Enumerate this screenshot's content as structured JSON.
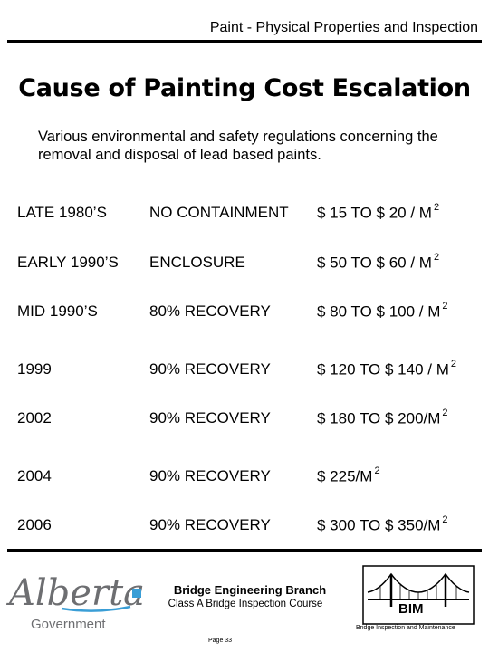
{
  "header": {
    "section_title": "Paint - Physical Properties and Inspection"
  },
  "slide": {
    "title": "Cause of Painting Cost Escalation",
    "intro": "Various environmental and safety regulations concerning the removal and disposal of lead based paints.",
    "rows": [
      {
        "period": "LATE 1980’S",
        "method": "NO CONTAINMENT",
        "cost": " $  15 TO $  20 / M",
        "unit_exp": "2"
      },
      {
        "period": "EARLY 1990’S",
        "method": "ENCLOSURE",
        "cost": "$  50 TO $  60 / M",
        "unit_exp": "2"
      },
      {
        "period": "MID 1990’S",
        "method": "80% RECOVERY",
        "cost": "$ 80 TO $ 100 / M",
        "unit_exp": "2"
      },
      {
        "period": "1999",
        "method": "90% RECOVERY",
        "cost": "$ 120 TO $ 140 / M",
        "unit_exp": "2"
      },
      {
        "period": "2002",
        "method": "90% RECOVERY",
        "cost": "$ 180  TO $ 200/M",
        "unit_exp": "2"
      },
      {
        "period": "2004",
        "method": "90% RECOVERY",
        "cost": "$ 225/M",
        "unit_exp": "2"
      },
      {
        "period": "2006",
        "method": "90% RECOVERY",
        "cost": "$ 300  TO $ 350/M",
        "unit_exp": "2"
      }
    ]
  },
  "footer": {
    "logo_name": "Alberta",
    "logo_sub": "Government",
    "branch": "Bridge Engineering Branch",
    "course": "Class A Bridge Inspection Course",
    "page": "Page 33",
    "bim_label": "BIM",
    "bim_caption": "Bridge Inspection and Maintenance"
  },
  "colors": {
    "logo_blue": "#3a9ed6",
    "logo_gray": "#6d6e71",
    "text": "#000000"
  }
}
